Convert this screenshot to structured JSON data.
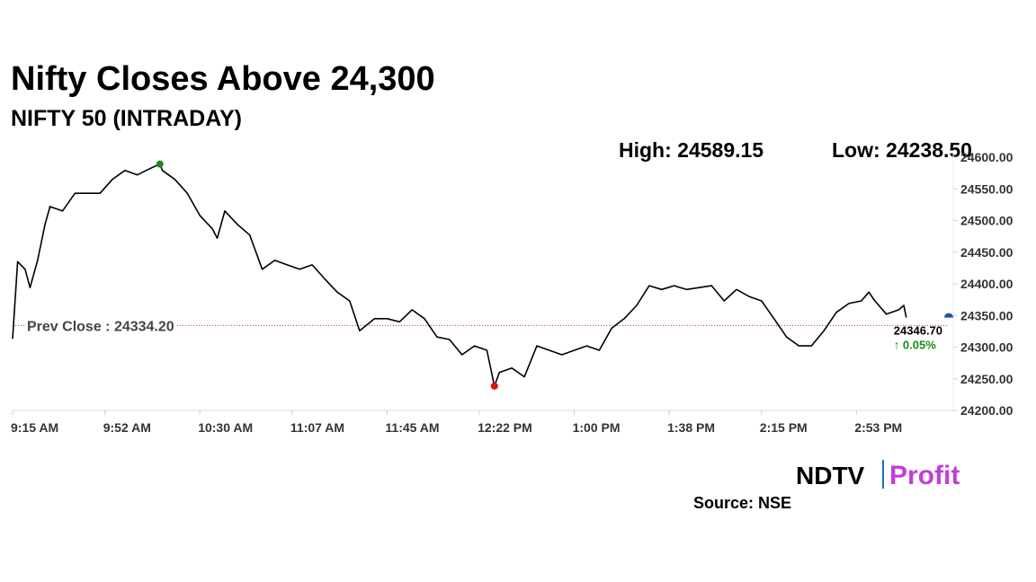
{
  "chart_data": {
    "type": "line",
    "title": "Nifty Closes Above 24,300",
    "subtitle": "NIFTY 50 (INTRADAY)",
    "x": [
      "9:15 AM",
      "9:17 AM",
      "9:20 AM",
      "9:22 AM",
      "9:25 AM",
      "9:28 AM",
      "9:30 AM",
      "9:35 AM",
      "9:40 AM",
      "9:45 AM",
      "9:50 AM",
      "9:55 AM",
      "10:00 AM",
      "10:05 AM",
      "10:10 AM",
      "10:14 AM",
      "10:15 AM",
      "10:20 AM",
      "10:25 AM",
      "10:30 AM",
      "10:35 AM",
      "10:37 AM",
      "10:40 AM",
      "10:45 AM",
      "10:50 AM",
      "10:55 AM",
      "11:00 AM",
      "11:05 AM",
      "11:10 AM",
      "11:15 AM",
      "11:20 AM",
      "11:25 AM",
      "11:30 AM",
      "11:34 AM",
      "11:40 AM",
      "11:45 AM",
      "11:50 AM",
      "11:55 AM",
      "12:00 PM",
      "12:05 PM",
      "12:10 PM",
      "12:15 PM",
      "12:20 PM",
      "12:25 PM",
      "12:28 PM",
      "12:30 PM",
      "12:35 PM",
      "12:40 PM",
      "12:45 PM",
      "12:50 PM",
      "12:55 PM",
      "1:00 PM",
      "1:05 PM",
      "1:10 PM",
      "1:15 PM",
      "1:20 PM",
      "1:25 PM",
      "1:30 PM",
      "1:35 PM",
      "1:40 PM",
      "1:45 PM",
      "1:50 PM",
      "1:55 PM",
      "2:00 PM",
      "2:05 PM",
      "2:10 PM",
      "2:15 PM",
      "2:20 PM",
      "2:25 PM",
      "2:30 PM",
      "2:35 PM",
      "2:40 PM",
      "2:45 PM",
      "2:50 PM",
      "2:55 PM",
      "2:58 PM",
      "3:00 PM",
      "3:05 PM",
      "3:10 PM",
      "3:12 PM",
      "3:13 PM"
    ],
    "series": [
      {
        "name": "NIFTY 50",
        "color": "#000000",
        "values": [
          24313,
          24435,
          24423,
          24394,
          24437,
          24494,
          24522,
          24515,
          24543,
          24543,
          24543,
          24565,
          24579,
          24572,
          24582,
          24589.15,
          24579,
          24565,
          24543,
          24508,
          24487,
          24472,
          24515,
          24494,
          24477,
          24423,
          24437,
          24430,
          24423,
          24430,
          24408,
          24387,
          24373,
          24326,
          24345,
          24345,
          24340,
          24359,
          24345,
          24316,
          24312,
          24288,
          24302,
          24295,
          24238.5,
          24260,
          24267,
          24253,
          24302,
          24295,
          24288,
          24295,
          24302,
          24295,
          24330,
          24345,
          24366,
          24397,
          24391,
          24397,
          24391,
          24394,
          24397,
          24373,
          24391,
          24380,
          24373,
          24345,
          24316,
          24302,
          24302,
          24326,
          24355,
          24369,
          24373,
          24387,
          24375,
          24352,
          24359,
          24366,
          24346.7
        ]
      }
    ],
    "xlim": [
      "9:15 AM",
      "3:30 PM"
    ],
    "xticks": [
      "9:15 AM",
      "9:52 AM",
      "10:30 AM",
      "11:07 AM",
      "11:45 AM",
      "12:22 PM",
      "1:00 PM",
      "1:38 PM",
      "2:15 PM",
      "2:53 PM"
    ],
    "ylim": [
      24200,
      24600
    ],
    "yticks": [
      {
        "value": 24200,
        "label": "24200.00"
      },
      {
        "value": 24250,
        "label": "24250.00"
      },
      {
        "value": 24300,
        "label": "24300.00"
      },
      {
        "value": 24350,
        "label": "24350.00"
      },
      {
        "value": 24400,
        "label": "24400.00"
      },
      {
        "value": 24450,
        "label": "24450.00"
      },
      {
        "value": 24500,
        "label": "24500.00"
      },
      {
        "value": 24550,
        "label": "24550.00"
      },
      {
        "value": 24600,
        "label": "24600.00"
      }
    ],
    "high": {
      "label": "High:",
      "value": 24589.15,
      "x": "10:14 AM",
      "color": "#1a8a1a"
    },
    "low": {
      "label": "Low:",
      "value": 24238.5,
      "value_label": "24238.50",
      "x": "12:28 PM",
      "color": "#e01010"
    },
    "prev_close": {
      "label": "Prev Close :",
      "value": 24334.2,
      "value_label": "24334.20",
      "color": "#c0392b"
    },
    "last": {
      "value_label": "24346.70",
      "change": "↑ 0.05%",
      "change_color": "#1a8a1a"
    },
    "logo": {
      "left": "NDTV",
      "right": "Profit"
    },
    "source": "Source: NSE"
  }
}
